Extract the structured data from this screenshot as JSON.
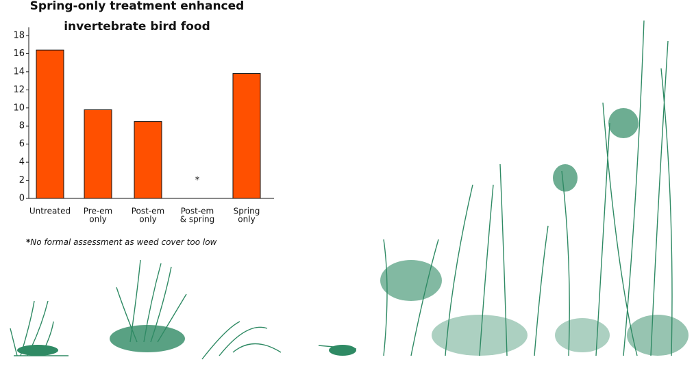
{
  "chart_data": {
    "type": "bar",
    "title": [
      "Spring-only treatment enhanced",
      "invertebrate bird food"
    ],
    "categories": [
      [
        "Untreated"
      ],
      [
        "Pre-em",
        "only"
      ],
      [
        "Post-em",
        "only"
      ],
      [
        "Post-em",
        "& spring"
      ],
      [
        "Spring",
        "only"
      ]
    ],
    "values": [
      16.4,
      9.8,
      8.5,
      null,
      13.8
    ],
    "value_labels": [
      null,
      null,
      null,
      "*",
      null
    ],
    "color": "#ff5000",
    "ylim": [
      0,
      18
    ],
    "yticks": [
      0,
      2,
      4,
      6,
      8,
      10,
      12,
      14,
      16,
      18
    ],
    "footnote": {
      "marker": "*",
      "text": "No formal assessment as weed cover too low"
    }
  }
}
